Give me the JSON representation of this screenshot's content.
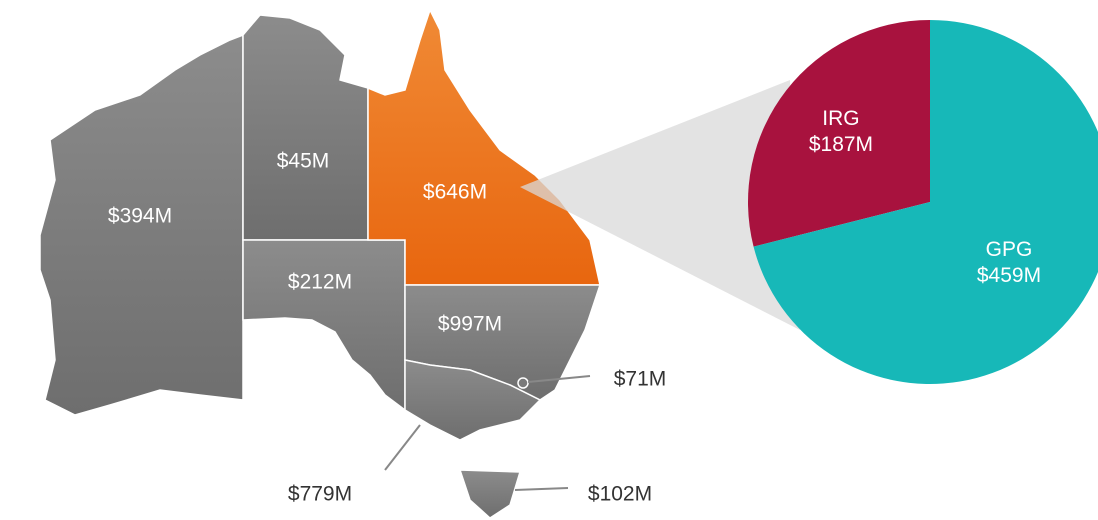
{
  "map": {
    "labels": [
      "$394M",
      "$45M",
      "$646M",
      "$212M",
      "$997M",
      "$71M",
      "$779M",
      "$102M"
    ]
  },
  "chart_data": {
    "type": "pie",
    "categories": [
      "IRG",
      "GPG"
    ],
    "values": [
      187,
      459
    ],
    "value_labels": [
      "$187M",
      "$459M"
    ],
    "colors": [
      "#a8123e",
      "#17b8b8"
    ]
  }
}
